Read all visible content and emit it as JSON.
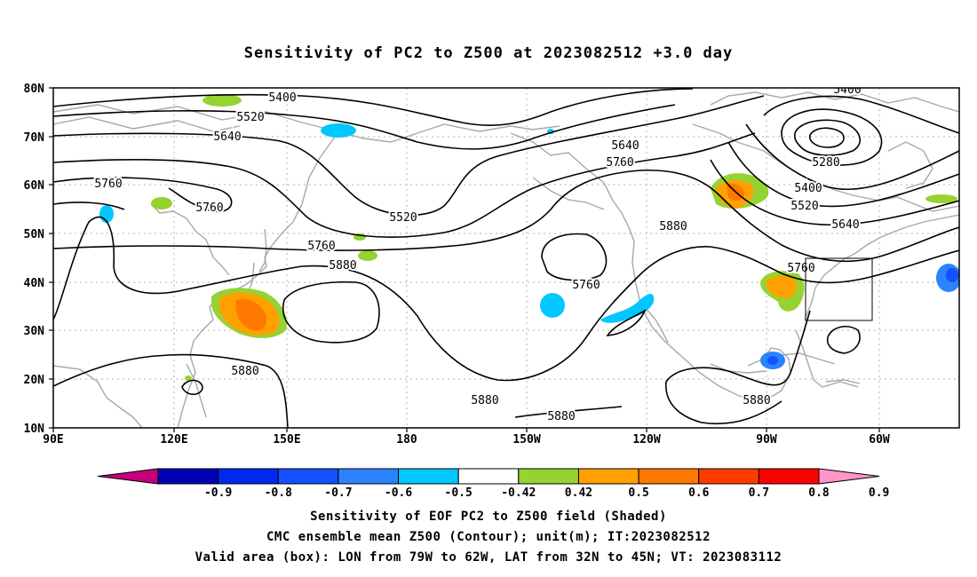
{
  "title": "Sensitivity of PC2 to Z500 at 2023082512 +3.0 day",
  "lat_labels": [
    "80N",
    "70N",
    "60N",
    "50N",
    "40N",
    "30N",
    "20N",
    "10N"
  ],
  "lon_labels": [
    "90E",
    "120E",
    "150E",
    "180",
    "150W",
    "120W",
    "90W",
    "60W"
  ],
  "contour_labels": [
    "5400",
    "5520",
    "5640",
    "5760",
    "5760",
    "5520",
    "5640",
    "5760",
    "5760",
    "5880",
    "5760",
    "5880",
    "5880",
    "5880",
    "5880",
    "5880",
    "5400",
    "5280",
    "5400",
    "5520",
    "5640",
    "5760"
  ],
  "colorbar": {
    "labels": [
      "-0.9",
      "-0.8",
      "-0.7",
      "-0.6",
      "-0.5",
      "-0.42",
      "0.42",
      "0.5",
      "0.6",
      "0.7",
      "0.8",
      "0.9"
    ],
    "colors": [
      "#c4007c",
      "#0000b4",
      "#0028f0",
      "#1450ff",
      "#2c82ff",
      "#00c8ff",
      "#ffffff",
      "#96d232",
      "#ffa000",
      "#ff7800",
      "#ff3c00",
      "#ff0000",
      "#ff96c8"
    ]
  },
  "captions": [
    "Sensitivity of EOF PC2 to Z500 field (Shaded)",
    "CMC ensemble mean Z500 (Contour); unit(m); IT:2023082512",
    "Valid area (box): LON from 79W to 62W, LAT from 32N to 45N; VT: 2023083112"
  ]
}
